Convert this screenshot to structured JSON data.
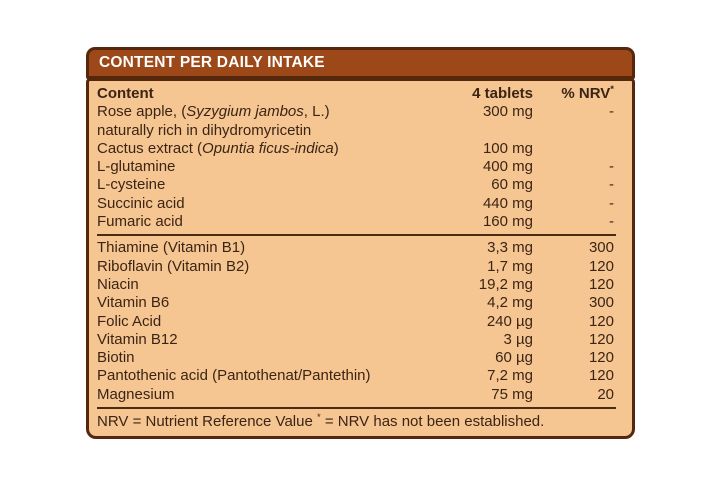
{
  "panel": {
    "title": "CONTENT PER DAILY INTAKE",
    "columns": {
      "name": "Content",
      "amount": "4 tablets",
      "nrv": "% NRV",
      "nrv_asterisk": "*"
    },
    "sections": [
      {
        "rows": [
          {
            "name_parts": [
              {
                "t": "Rose apple, ("
              },
              {
                "t": "Syzygium jambos",
                "i": true
              },
              {
                "t": ", L.)"
              }
            ],
            "name_line2": "naturally rich in dihydromyricetin",
            "amount": "300 mg",
            "nrv": "-"
          },
          {
            "name_parts": [
              {
                "t": "Cactus extract ("
              },
              {
                "t": "Opuntia ficus-indica",
                "i": true
              },
              {
                "t": ")"
              }
            ],
            "amount": "100 mg",
            "nrv": ""
          },
          {
            "name_parts": [
              {
                "t": "L-glutamine"
              }
            ],
            "amount": "400 mg",
            "nrv": "-"
          },
          {
            "name_parts": [
              {
                "t": "L-cysteine"
              }
            ],
            "amount": "60 mg",
            "nrv": "-"
          },
          {
            "name_parts": [
              {
                "t": "Succinic acid"
              }
            ],
            "amount": "440 mg",
            "nrv": "-"
          },
          {
            "name_parts": [
              {
                "t": "Fumaric acid"
              }
            ],
            "amount": "160 mg",
            "nrv": "-"
          }
        ]
      },
      {
        "rows": [
          {
            "name_parts": [
              {
                "t": "Thiamine (Vitamin B1)"
              }
            ],
            "amount": "3,3 mg",
            "nrv": "300"
          },
          {
            "name_parts": [
              {
                "t": "Riboflavin (Vitamin B2)"
              }
            ],
            "amount": "1,7 mg",
            "nrv": "120"
          },
          {
            "name_parts": [
              {
                "t": "Niacin"
              }
            ],
            "amount": "19,2 mg",
            "nrv": "120"
          },
          {
            "name_parts": [
              {
                "t": "Vitamin B6"
              }
            ],
            "amount": "4,2 mg",
            "nrv": "300"
          },
          {
            "name_parts": [
              {
                "t": "Folic Acid"
              }
            ],
            "amount": "240 µg",
            "nrv": "120"
          },
          {
            "name_parts": [
              {
                "t": "Vitamin B12"
              }
            ],
            "amount": "3 µg",
            "nrv": "120"
          },
          {
            "name_parts": [
              {
                "t": "Biotin"
              }
            ],
            "amount": "60 µg",
            "nrv": "120"
          },
          {
            "name_parts": [
              {
                "t": "Pantothenic acid (Pantothenat/Pantethin)"
              }
            ],
            "amount": "7,2 mg",
            "nrv": "120"
          },
          {
            "name_parts": [
              {
                "t": "Magnesium"
              }
            ],
            "amount": "75 mg",
            "nrv": "20"
          }
        ]
      }
    ],
    "footer": {
      "prefix": "NRV = Nutrient Reference Value ",
      "asterisk": "*",
      "suffix": " = NRV has not been established."
    },
    "colors": {
      "header_bg": "#9c4818",
      "header_text": "#ffffff",
      "border": "#55280e",
      "body_bg": "#f5c692",
      "text": "#3c2415",
      "divider": "#4d2b12",
      "page_bg": "#ffffff"
    }
  }
}
